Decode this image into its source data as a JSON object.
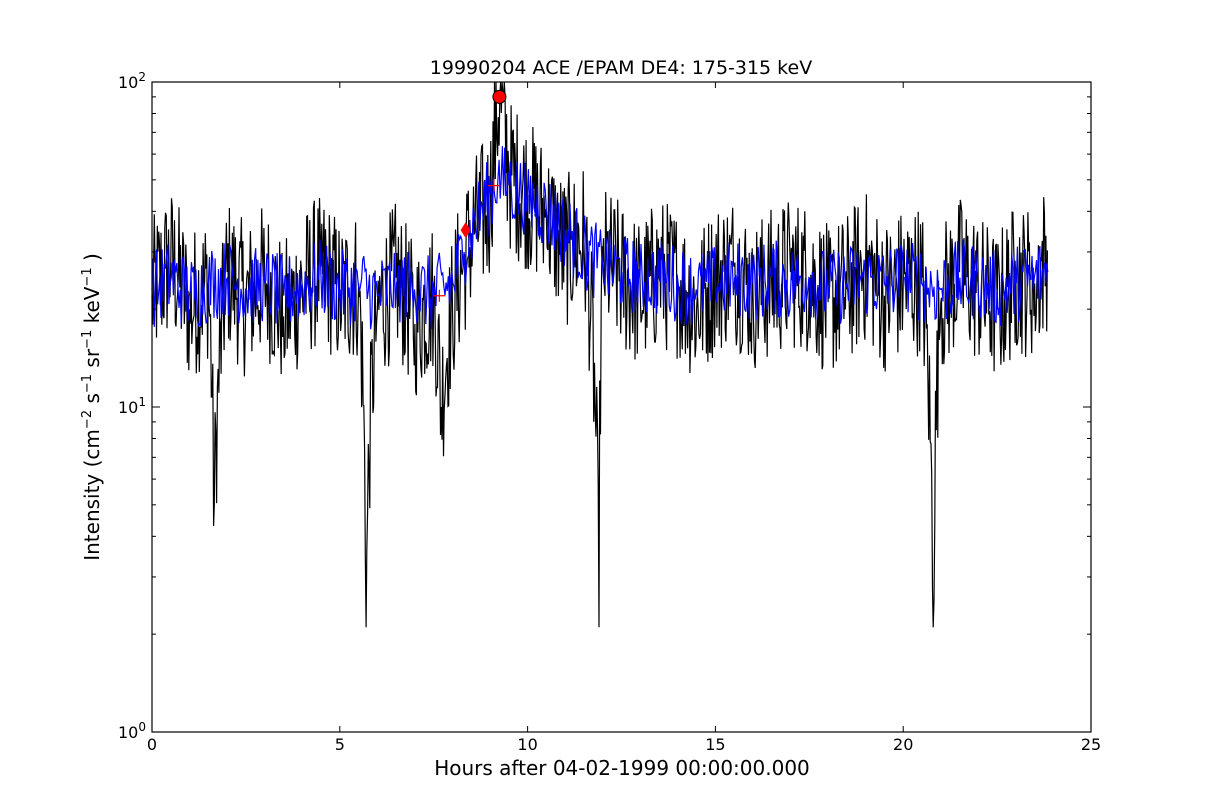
{
  "chart_data": {
    "type": "line",
    "title": "19990204 ACE /EPAM DE4: 175-315 keV",
    "xlabel": "Hours after 04-02-1999 00:00:00.000",
    "ylabel": {
      "prefix": "Intensity (cm",
      "exp1": "−2",
      "part2": " s",
      "exp2": "−1",
      "part3": " sr",
      "exp3": "−1",
      "part4": " keV",
      "exp4": "−1",
      "suffix": " )"
    },
    "xlim": [
      0,
      25
    ],
    "ylim": [
      1,
      100
    ],
    "yscale": "log",
    "grid": false,
    "xticks": [
      0,
      5,
      10,
      15,
      20,
      25
    ],
    "xtick_labels": [
      "0",
      "5",
      "10",
      "15",
      "20",
      "25"
    ],
    "yticks": [
      1,
      10,
      100
    ],
    "ytick_labels": [
      {
        "base": "10",
        "exp": "0"
      },
      {
        "base": "10",
        "exp": "1"
      },
      {
        "base": "10",
        "exp": "2"
      }
    ],
    "series": [
      {
        "color": "#000000",
        "x": [
          0.0,
          0.5,
          1.0,
          1.5,
          1.65,
          2.0,
          2.5,
          3.0,
          3.5,
          4.0,
          4.5,
          5.0,
          5.5,
          5.7,
          6.0,
          6.5,
          7.0,
          7.5,
          7.7,
          8.0,
          8.3,
          8.6,
          9.0,
          9.25,
          9.5,
          10.0,
          10.5,
          11.0,
          11.5,
          11.9,
          12.0,
          12.5,
          13.0,
          13.5,
          14.0,
          14.5,
          15.0,
          15.5,
          16.0,
          16.5,
          17.0,
          17.5,
          18.0,
          18.5,
          19.0,
          19.5,
          20.0,
          20.5,
          20.8,
          21.0,
          21.5,
          22.0,
          22.5,
          23.0,
          23.5,
          23.85
        ],
        "y": [
          22,
          28,
          20,
          24,
          4.3,
          26,
          21,
          25,
          19,
          23,
          27,
          22,
          24,
          2.1,
          20,
          25,
          18,
          22,
          10,
          20,
          28,
          35,
          42,
          90,
          52,
          45,
          38,
          30,
          33,
          2.1,
          28,
          25,
          22,
          26,
          24,
          20,
          25,
          27,
          22,
          24,
          26,
          25,
          21,
          23,
          27,
          22,
          24,
          25,
          2.1,
          21,
          26,
          23,
          20,
          25,
          24,
          30
        ]
      },
      {
        "color": "#0000ff",
        "x": [
          0.0,
          0.5,
          1.0,
          1.5,
          2.0,
          2.5,
          3.0,
          3.5,
          4.0,
          4.5,
          5.0,
          5.5,
          6.0,
          6.5,
          7.0,
          7.5,
          8.0,
          8.3,
          8.6,
          9.0,
          9.2,
          9.5,
          10.0,
          10.5,
          11.0,
          11.5,
          12.0,
          12.5,
          13.0,
          13.5,
          14.0,
          14.5,
          15.0,
          15.5,
          16.0,
          16.5,
          17.0,
          17.5,
          18.0,
          18.5,
          19.0,
          19.5,
          20.0,
          20.5,
          21.0,
          21.5,
          22.0,
          22.5,
          23.0,
          23.5,
          23.85
        ],
        "y": [
          23,
          25,
          22,
          24,
          25,
          23,
          24,
          22,
          24,
          25,
          23,
          24,
          22,
          24,
          23,
          22,
          24,
          30,
          37,
          45,
          50,
          48,
          44,
          40,
          35,
          30,
          27,
          26,
          25,
          25,
          24,
          23,
          24,
          25,
          24,
          25,
          24,
          25,
          23,
          24,
          25,
          24,
          25,
          24,
          23,
          25,
          24,
          23,
          24,
          25,
          26
        ]
      }
    ],
    "markers": [
      {
        "type": "circle",
        "x": 9.25,
        "y": 90,
        "color": "#ff0000",
        "edge": "#000000"
      },
      {
        "type": "diamond",
        "x": 8.35,
        "y": 35,
        "color": "#ff0000"
      },
      {
        "type": "plus",
        "x": 9.1,
        "y": 48,
        "color": "#ff0000"
      },
      {
        "type": "plus",
        "x": 7.65,
        "y": 22,
        "color": "#ff0000"
      }
    ]
  }
}
